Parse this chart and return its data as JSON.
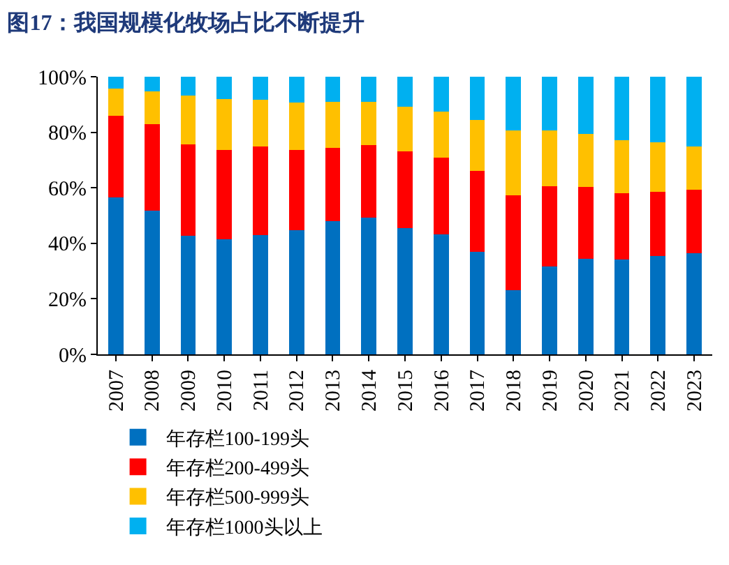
{
  "chart_data": {
    "type": "bar",
    "stacked": true,
    "title": "图17：我国规模化牧场占比不断提升",
    "categories": [
      "2007",
      "2008",
      "2009",
      "2010",
      "2011",
      "2012",
      "2013",
      "2014",
      "2015",
      "2016",
      "2017",
      "2018",
      "2019",
      "2020",
      "2021",
      "2022",
      "2023"
    ],
    "series": [
      {
        "name": "年存栏100-199头",
        "color": "#0070c0",
        "values": [
          56.5,
          51.7,
          42.8,
          41.5,
          43.0,
          44.8,
          48.0,
          49.3,
          45.4,
          43.1,
          36.9,
          23.1,
          31.7,
          34.3,
          34.1,
          35.4,
          36.5
        ]
      },
      {
        "name": "年存栏200-499头",
        "color": "#ff0000",
        "values": [
          29.4,
          31.1,
          32.9,
          32.0,
          31.8,
          28.7,
          26.4,
          26.1,
          27.7,
          27.8,
          29.2,
          34.1,
          28.9,
          25.9,
          23.9,
          23.1,
          22.8
        ]
      },
      {
        "name": "年存栏500-999头",
        "color": "#ffc000",
        "values": [
          9.8,
          12.0,
          17.4,
          18.5,
          16.9,
          17.2,
          16.5,
          15.5,
          16.0,
          16.5,
          18.3,
          23.4,
          20.1,
          19.2,
          19.2,
          17.8,
          15.7
        ]
      },
      {
        "name": "年存栏1000头以上",
        "color": "#00b0f0",
        "values": [
          4.3,
          5.2,
          6.9,
          8.0,
          8.3,
          9.3,
          9.1,
          9.1,
          10.9,
          12.6,
          15.6,
          19.4,
          19.3,
          20.6,
          22.8,
          23.7,
          25.0
        ]
      }
    ],
    "ylim": [
      0,
      100
    ],
    "yticks": [
      {
        "value": 0,
        "label": "0%"
      },
      {
        "value": 20,
        "label": "20%"
      },
      {
        "value": 40,
        "label": "40%"
      },
      {
        "value": 60,
        "label": "60%"
      },
      {
        "value": 80,
        "label": "80%"
      },
      {
        "value": 100,
        "label": "100%"
      }
    ],
    "grid": false,
    "legend": "bottom"
  }
}
